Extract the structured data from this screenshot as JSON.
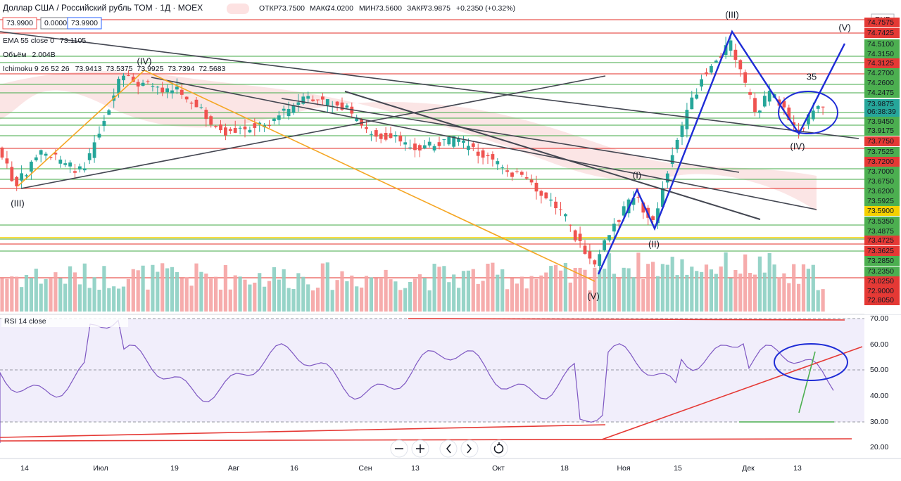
{
  "header": {
    "title": "Доллар США / Российский рубль TOM · 1Д · MOEX",
    "open_label": "ОТКР",
    "open": "73.7500",
    "high_label": "МАКС",
    "high": "74.0200",
    "low_label": "МИН",
    "low": "73.5600",
    "close_label": "ЗАКР",
    "close": "73.9875",
    "change": "+0.2350 (+0.32%)"
  },
  "price_boxes": [
    "73.9900",
    "0.0000",
    "73.9900"
  ],
  "indicators": [
    {
      "name": "EMA 55 close 0",
      "values": [
        "73.1105"
      ]
    },
    {
      "name": "Объём",
      "values": [
        "2.004B"
      ]
    },
    {
      "name": "Ichimoku 9 26 52 26",
      "values": [
        "73.9413",
        "73.5375",
        "73.9925",
        "73.7394",
        "72.5683"
      ]
    }
  ],
  "currency": "RUB",
  "price_axis": [
    "74.7575",
    "74.7425",
    "74.5100",
    "74.3150",
    "74.3125",
    "74.2700",
    "74.2600",
    "74.2475",
    "73.9875",
    "06:38:39",
    "73.9450",
    "73.9175",
    "73.7750",
    "73.7525",
    "73.7200",
    "73.7000",
    "73.6750",
    "73.6200",
    "73.5925",
    "73.5900",
    "73.5350",
    "73.4875",
    "73.4725",
    "73.3625",
    "73.2850",
    "73.2350",
    "73.0250",
    "72.9000",
    "72.8050"
  ],
  "time_axis": [
    "14",
    "Июл",
    "19",
    "Авг",
    "16",
    "Сен",
    "13",
    "Окт",
    "18",
    "Ноя",
    "15",
    "Дек",
    "13"
  ],
  "rsi": {
    "name": "RSI 14 close",
    "axis": [
      "70.00",
      "60.00",
      "50.00",
      "40.00",
      "30.00",
      "20.00"
    ]
  },
  "waves": [
    "(III)",
    "(IV)",
    "(V)",
    "(III)",
    "(V)",
    "(IV)",
    "(II)",
    "(I)",
    "35"
  ]
}
